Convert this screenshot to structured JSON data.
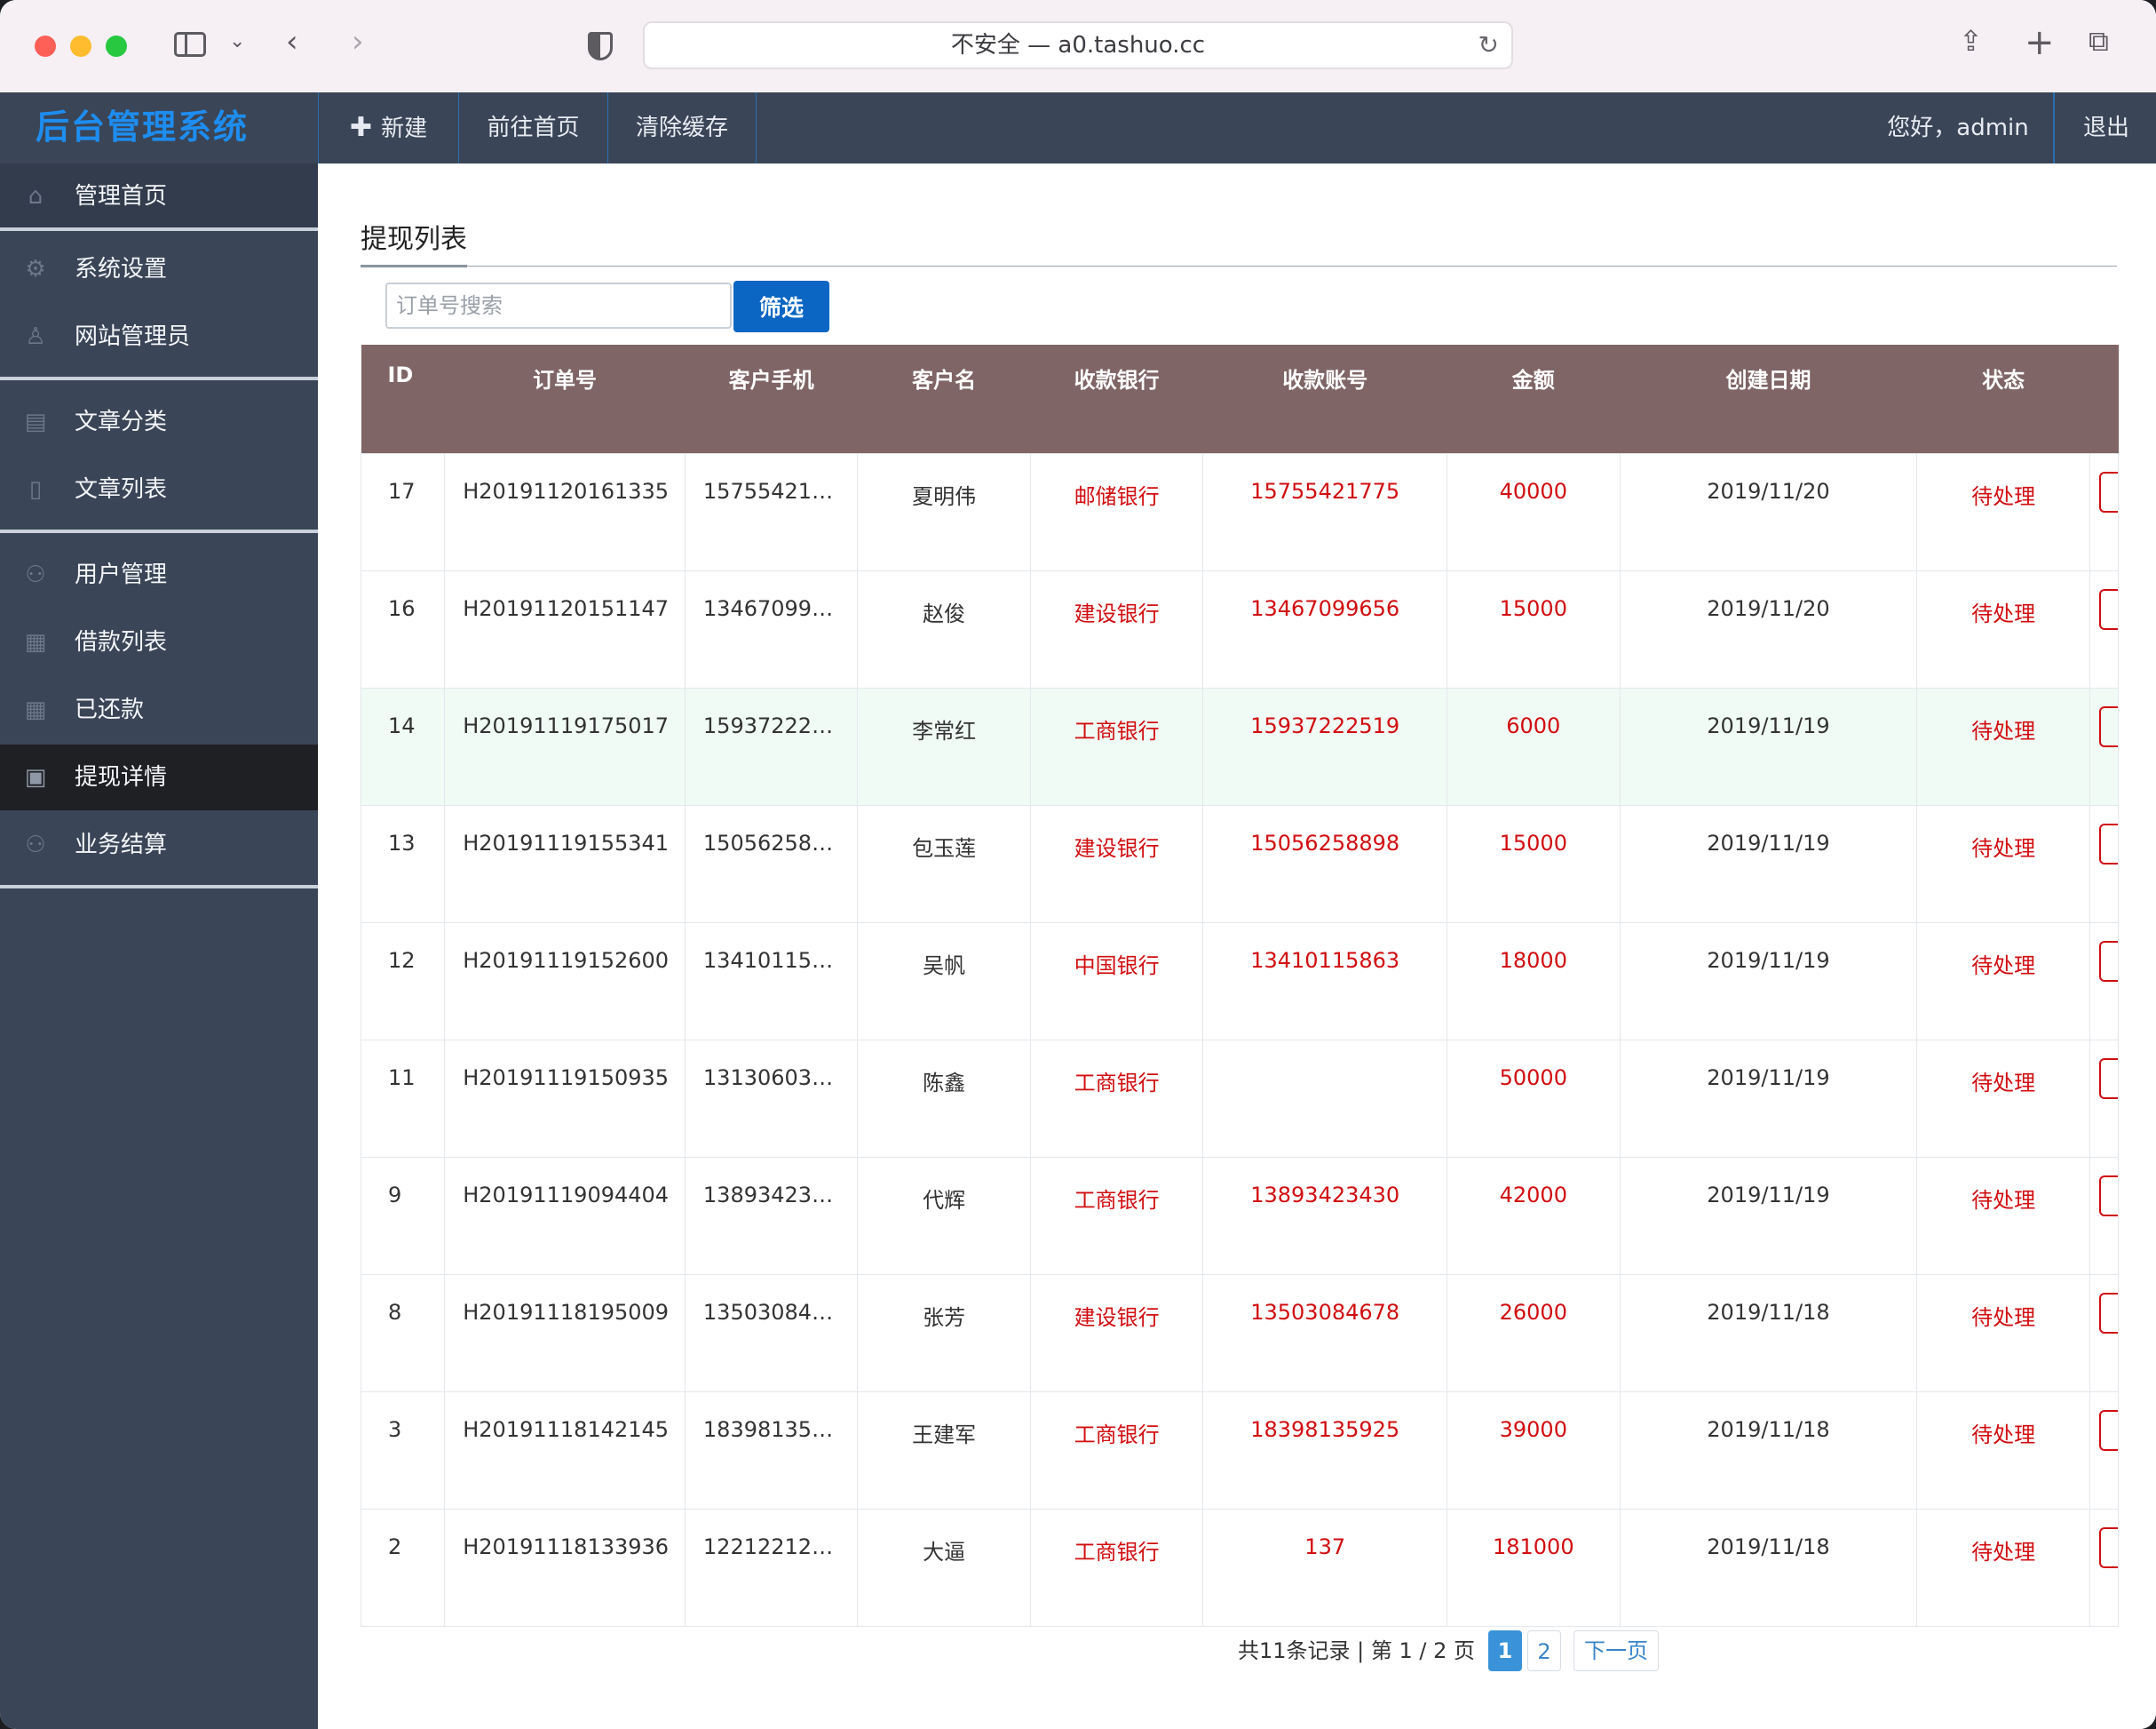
{
  "browser": {
    "address": "不安全 — a0.tashuo.cc"
  },
  "topnav": {
    "brand": "后台管理系统",
    "new_label": "新建",
    "home_label": "前往首页",
    "clear_cache_label": "清除缓存",
    "greeting": "您好，admin",
    "logout_label": "退出"
  },
  "sidebar": {
    "items": [
      {
        "label": "管理首页",
        "icon": "home-icon"
      },
      {
        "label": "系统设置",
        "icon": "gear-icon"
      },
      {
        "label": "网站管理员",
        "icon": "user-icon"
      },
      {
        "label": "文章分类",
        "icon": "book-icon"
      },
      {
        "label": "文章列表",
        "icon": "document-icon"
      },
      {
        "label": "用户管理",
        "icon": "users-icon"
      },
      {
        "label": "借款列表",
        "icon": "grid-icon"
      },
      {
        "label": "已还款",
        "icon": "grid-icon"
      },
      {
        "label": "提现详情",
        "icon": "inbox-icon"
      },
      {
        "label": "业务结算",
        "icon": "users-icon"
      }
    ]
  },
  "main": {
    "section_title": "提现列表",
    "search_placeholder": "订单号搜索",
    "filter_label": "筛选",
    "columns": [
      "ID",
      "订单号",
      "客户手机",
      "客户名",
      "收款银行",
      "收款账号",
      "金额",
      "创建日期",
      "状态"
    ],
    "rows": [
      {
        "id": "17",
        "order": "H20191120161335",
        "phone": "15755421…",
        "name": "夏明伟",
        "bank": "邮储银行",
        "account": "15755421775",
        "amount": "40000",
        "date": "2019/11/20",
        "status": "待处理"
      },
      {
        "id": "16",
        "order": "H20191120151147",
        "phone": "13467099…",
        "name": "赵俊",
        "bank": "建设银行",
        "account": "13467099656",
        "amount": "15000",
        "date": "2019/11/20",
        "status": "待处理"
      },
      {
        "id": "14",
        "order": "H20191119175017",
        "phone": "15937222…",
        "name": "李常红",
        "bank": "工商银行",
        "account": "15937222519",
        "amount": "6000",
        "date": "2019/11/19",
        "status": "待处理"
      },
      {
        "id": "13",
        "order": "H20191119155341",
        "phone": "15056258…",
        "name": "包玉莲",
        "bank": "建设银行",
        "account": "15056258898",
        "amount": "15000",
        "date": "2019/11/19",
        "status": "待处理"
      },
      {
        "id": "12",
        "order": "H20191119152600",
        "phone": "13410115…",
        "name": "吴帆",
        "bank": "中国银行",
        "account": "13410115863",
        "amount": "18000",
        "date": "2019/11/19",
        "status": "待处理"
      },
      {
        "id": "11",
        "order": "H20191119150935",
        "phone": "13130603…",
        "name": "陈鑫",
        "bank": "工商银行",
        "account": "",
        "amount": "50000",
        "date": "2019/11/19",
        "status": "待处理"
      },
      {
        "id": "9",
        "order": "H20191119094404",
        "phone": "13893423…",
        "name": "代辉",
        "bank": "工商银行",
        "account": "13893423430",
        "amount": "42000",
        "date": "2019/11/19",
        "status": "待处理"
      },
      {
        "id": "8",
        "order": "H20191118195009",
        "phone": "13503084…",
        "name": "张芳",
        "bank": "建设银行",
        "account": "13503084678",
        "amount": "26000",
        "date": "2019/11/18",
        "status": "待处理"
      },
      {
        "id": "3",
        "order": "H20191118142145",
        "phone": "18398135…",
        "name": "王建军",
        "bank": "工商银行",
        "account": "18398135925",
        "amount": "39000",
        "date": "2019/11/18",
        "status": "待处理"
      },
      {
        "id": "2",
        "order": "H20191118133936",
        "phone": "12212212…",
        "name": "大逼",
        "bank": "工商银行",
        "account": "137",
        "amount": "181000",
        "date": "2019/11/18",
        "status": "待处理"
      }
    ],
    "pagination": {
      "summary": "共11条记录 | 第 1 / 2 页",
      "current": "1",
      "other": "2",
      "next_label": "下一页"
    }
  },
  "colors": {
    "nav_bg": "#3a4557",
    "brand_blue": "#1e8df0",
    "table_header_bg": "#7f6566",
    "accent_red": "#d10d10",
    "button_blue": "#0a66c2"
  }
}
